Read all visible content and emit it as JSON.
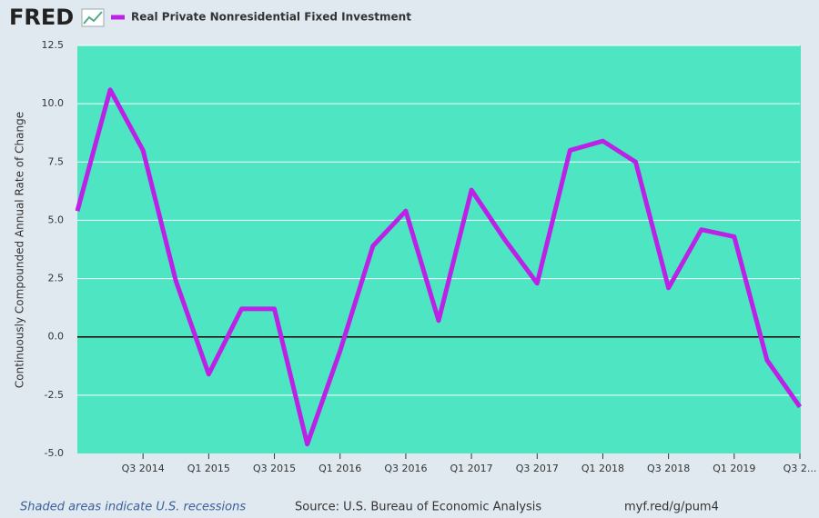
{
  "logo": "FRED",
  "footer": {
    "recessions": "Shaded areas indicate U.S. recessions",
    "source": "Source: U.S. Bureau of Economic Analysis",
    "link": "myf.red/g/pum4"
  },
  "chart_data": {
    "type": "line",
    "ylabel": "Continuously Compounded Annual Rate of Change",
    "categories": [
      null,
      null,
      "Q3 2014",
      null,
      "Q1 2015",
      null,
      "Q3 2015",
      null,
      "Q1 2016",
      null,
      "Q3 2016",
      null,
      "Q1 2017",
      null,
      "Q3 2017",
      null,
      "Q1 2018",
      null,
      "Q3 2018",
      null,
      "Q1 2019",
      null,
      "Q3 2..."
    ],
    "series": [
      {
        "name": "Real Private Nonresidential Fixed Investment",
        "color": "#bb22e6",
        "values": [
          5.4,
          10.6,
          8.0,
          2.4,
          -1.6,
          1.2,
          1.2,
          -4.6,
          -0.6,
          3.9,
          5.4,
          0.7,
          6.3,
          4.2,
          2.3,
          8.0,
          8.4,
          7.5,
          2.1,
          4.6,
          4.3,
          -1.0,
          -3.0
        ]
      }
    ],
    "ylim": [
      -5,
      12.5
    ],
    "yticks": [
      {
        "value": -5,
        "label": "-5.0"
      },
      -2.5,
      {
        "value": 0,
        "label": "0.0"
      },
      2.5,
      {
        "value": 5,
        "label": "5.0"
      },
      7.5,
      {
        "value": 10,
        "label": "10.0"
      },
      12.5
    ],
    "grid": true,
    "zero_line": true,
    "plot_color": "#4ee5c2"
  }
}
